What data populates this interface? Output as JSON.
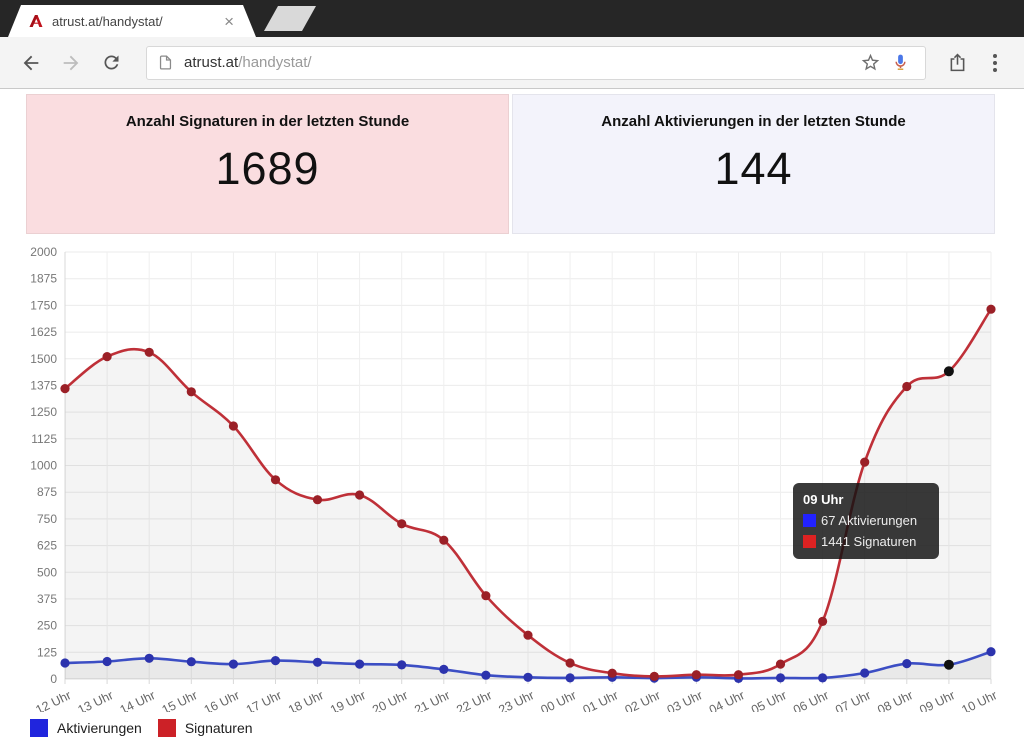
{
  "browser": {
    "tab": {
      "title": "atrust.at/handystat/",
      "close_label": "×"
    },
    "url": {
      "host": "atrust.at",
      "path": "/handystat/"
    }
  },
  "stats": {
    "left": {
      "title": "Anzahl Signaturen in der letzten Stunde",
      "value": "1689"
    },
    "right": {
      "title": "Anzahl Aktivierungen in der letzten Stunde",
      "value": "144"
    }
  },
  "chart_data": {
    "type": "line",
    "categories": [
      "12 Uhr",
      "13 Uhr",
      "14 Uhr",
      "15 Uhr",
      "16 Uhr",
      "17 Uhr",
      "18 Uhr",
      "19 Uhr",
      "20 Uhr",
      "21 Uhr",
      "22 Uhr",
      "23 Uhr",
      "00 Uhr",
      "01 Uhr",
      "02 Uhr",
      "03 Uhr",
      "04 Uhr",
      "05 Uhr",
      "06 Uhr",
      "07 Uhr",
      "08 Uhr",
      "09 Uhr",
      "10 Uhr"
    ],
    "series": [
      {
        "name": "Aktivierungen",
        "color": "#3c4ec4",
        "point_color": "#2c33ad",
        "values": [
          75,
          82,
          97,
          81,
          70,
          86,
          78,
          70,
          66,
          45,
          18,
          8,
          5,
          8,
          4,
          8,
          3,
          5,
          5,
          28,
          72,
          67,
          128
        ]
      },
      {
        "name": "Signaturen",
        "color": "#bf3038",
        "point_color": "#9b2027",
        "values": [
          1360,
          1510,
          1530,
          1345,
          1185,
          933,
          840,
          862,
          727,
          650,
          390,
          205,
          75,
          27,
          12,
          20,
          20,
          70,
          270,
          1016,
          1370,
          1441,
          1732
        ]
      }
    ],
    "ylim": [
      0,
      2000
    ],
    "ytick_step": 125,
    "xlabel": "",
    "ylabel": "",
    "grid": true,
    "legend_position": "bottom-left",
    "highlight_index": 21,
    "highlight_color": "#111111",
    "area_fill": "rgba(0,0,0,0.045)",
    "tooltip": {
      "title": "09 Uhr",
      "rows": [
        {
          "color": "#2222ff",
          "text": "67 Aktivierungen"
        },
        {
          "color": "#dd2222",
          "text": "1441 Signaturen"
        }
      ]
    },
    "legend": [
      {
        "label": "Aktivierungen",
        "color": "#2025dd"
      },
      {
        "label": "Signaturen",
        "color": "#cc2127"
      }
    ]
  }
}
